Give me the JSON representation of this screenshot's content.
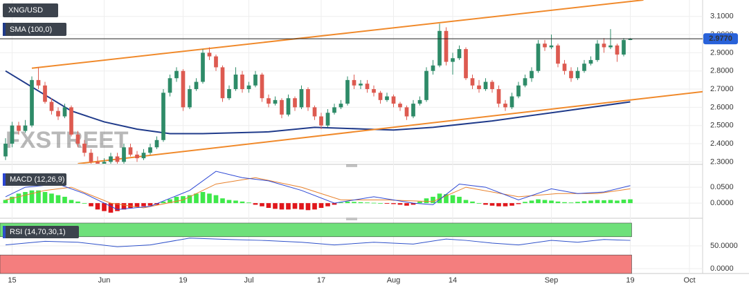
{
  "chart_data": [
    {
      "type": "candlestick",
      "title": "XNG/USD",
      "watermark": "FXSTREET",
      "up_color": "#2e8b68",
      "down_color": "#dd5a50",
      "grid": true,
      "xlim": [
        0,
        106
      ],
      "xticks": [
        {
          "value": 1,
          "label": "15"
        },
        {
          "value": 15,
          "label": "Jun"
        },
        {
          "value": 27,
          "label": "19"
        },
        {
          "value": 37,
          "label": "Jul"
        },
        {
          "value": 48,
          "label": "17"
        },
        {
          "value": 59,
          "label": "Aug"
        },
        {
          "value": 68,
          "label": "14"
        },
        {
          "value": 83,
          "label": "Sep"
        },
        {
          "value": 95,
          "label": "19"
        },
        {
          "value": 104,
          "label": "Oct"
        }
      ],
      "ylim": [
        2.29,
        3.19
      ],
      "yticks": [
        {
          "value": 2.3,
          "label": "2.3000"
        },
        {
          "value": 2.4,
          "label": "2.4000"
        },
        {
          "value": 2.5,
          "label": "2.5000"
        },
        {
          "value": 2.6,
          "label": "2.6000"
        },
        {
          "value": 2.7,
          "label": "2.7000"
        },
        {
          "value": 2.8,
          "label": "2.8000"
        },
        {
          "value": 2.9,
          "label": "2.9000"
        },
        {
          "value": 3.0,
          "label": "3.0000"
        },
        {
          "value": 3.1,
          "label": "3.1000"
        }
      ],
      "open": [
        2.33,
        2.4,
        2.5,
        2.47,
        2.5,
        2.75,
        2.72,
        2.63,
        2.58,
        2.55,
        2.6,
        2.45,
        2.4,
        2.35,
        2.3,
        2.28,
        2.3,
        2.33,
        2.3,
        2.38,
        2.34,
        2.32,
        2.35,
        2.38,
        2.42,
        2.68,
        2.76,
        2.8,
        2.6,
        2.7,
        2.74,
        2.9,
        2.88,
        2.82,
        2.65,
        2.7,
        2.78,
        2.7,
        2.72,
        2.78,
        2.65,
        2.62,
        2.64,
        2.56,
        2.65,
        2.6,
        2.7,
        2.6,
        2.55,
        2.5,
        2.57,
        2.6,
        2.62,
        2.75,
        2.72,
        2.73,
        2.7,
        2.68,
        2.64,
        2.66,
        2.62,
        2.6,
        2.55,
        2.62,
        2.64,
        2.8,
        2.83,
        3.02,
        2.85,
        2.87,
        2.92,
        2.76,
        2.72,
        2.7,
        2.74,
        2.7,
        2.62,
        2.6,
        2.66,
        2.72,
        2.76,
        2.8,
        2.95,
        2.93,
        2.94,
        2.84,
        2.8,
        2.76,
        2.8,
        2.84,
        2.86,
        2.95,
        2.93,
        2.94,
        2.89,
        2.97
      ],
      "high": [
        2.43,
        2.52,
        2.52,
        2.53,
        2.77,
        2.82,
        2.74,
        2.65,
        2.6,
        2.62,
        2.61,
        2.47,
        2.42,
        2.37,
        2.33,
        2.32,
        2.35,
        2.35,
        2.4,
        2.4,
        2.36,
        2.37,
        2.4,
        2.44,
        2.7,
        2.78,
        2.82,
        2.81,
        2.72,
        2.76,
        2.92,
        2.93,
        2.89,
        2.83,
        2.72,
        2.82,
        2.8,
        2.74,
        2.8,
        2.79,
        2.67,
        2.66,
        2.65,
        2.67,
        2.66,
        2.72,
        2.71,
        2.61,
        2.57,
        2.59,
        2.62,
        2.64,
        2.77,
        2.78,
        2.75,
        2.75,
        2.72,
        2.69,
        2.68,
        2.67,
        2.63,
        2.61,
        2.64,
        2.66,
        2.82,
        2.86,
        3.06,
        3.04,
        2.9,
        2.94,
        2.93,
        2.78,
        2.75,
        2.76,
        2.75,
        2.72,
        2.64,
        2.68,
        2.74,
        2.78,
        2.82,
        2.97,
        2.97,
        3.0,
        2.95,
        2.86,
        2.82,
        2.82,
        2.86,
        2.88,
        2.97,
        2.98,
        3.03,
        2.95,
        2.98,
        2.98
      ],
      "low": [
        2.31,
        2.38,
        2.45,
        2.46,
        2.49,
        2.7,
        2.62,
        2.56,
        2.53,
        2.54,
        2.44,
        2.38,
        2.33,
        2.28,
        2.26,
        2.27,
        2.29,
        2.29,
        2.29,
        2.33,
        2.3,
        2.31,
        2.34,
        2.37,
        2.41,
        2.66,
        2.74,
        2.58,
        2.59,
        2.69,
        2.73,
        2.86,
        2.8,
        2.63,
        2.64,
        2.69,
        2.68,
        2.68,
        2.71,
        2.63,
        2.6,
        2.61,
        2.54,
        2.55,
        2.58,
        2.59,
        2.58,
        2.53,
        2.48,
        2.49,
        2.56,
        2.59,
        2.61,
        2.7,
        2.7,
        2.68,
        2.66,
        2.62,
        2.63,
        2.6,
        2.58,
        2.53,
        2.54,
        2.61,
        2.63,
        2.78,
        2.82,
        2.83,
        2.78,
        2.86,
        2.75,
        2.7,
        2.68,
        2.69,
        2.68,
        2.6,
        2.58,
        2.59,
        2.65,
        2.71,
        2.74,
        2.79,
        2.91,
        2.92,
        2.82,
        2.78,
        2.74,
        2.75,
        2.79,
        2.83,
        2.85,
        2.9,
        2.92,
        2.85,
        2.88,
        2.97
      ],
      "close": [
        2.4,
        2.5,
        2.47,
        2.5,
        2.75,
        2.72,
        2.63,
        2.58,
        2.55,
        2.6,
        2.45,
        2.4,
        2.35,
        2.3,
        2.28,
        2.3,
        2.33,
        2.3,
        2.38,
        2.34,
        2.32,
        2.35,
        2.38,
        2.42,
        2.68,
        2.76,
        2.8,
        2.6,
        2.7,
        2.74,
        2.9,
        2.88,
        2.82,
        2.65,
        2.7,
        2.78,
        2.7,
        2.72,
        2.78,
        2.65,
        2.62,
        2.64,
        2.56,
        2.65,
        2.6,
        2.7,
        2.6,
        2.55,
        2.5,
        2.57,
        2.6,
        2.62,
        2.75,
        2.72,
        2.73,
        2.7,
        2.68,
        2.64,
        2.66,
        2.62,
        2.6,
        2.55,
        2.62,
        2.64,
        2.8,
        2.83,
        3.02,
        2.85,
        2.87,
        2.92,
        2.76,
        2.72,
        2.7,
        2.74,
        2.7,
        2.62,
        2.6,
        2.66,
        2.72,
        2.76,
        2.8,
        2.95,
        2.93,
        2.94,
        2.84,
        2.8,
        2.76,
        2.8,
        2.84,
        2.86,
        2.95,
        2.93,
        2.94,
        2.89,
        2.97,
        2.977
      ],
      "sma": {
        "name": "SMA (100,0)",
        "color": "#1f3a8a",
        "x": [
          0,
          5,
          10,
          15,
          20,
          25,
          30,
          40,
          47,
          55,
          59,
          65,
          74,
          84,
          95
        ],
        "values": [
          2.8,
          2.69,
          2.58,
          2.52,
          2.48,
          2.455,
          2.455,
          2.465,
          2.49,
          2.48,
          2.475,
          2.49,
          2.525,
          2.575,
          2.63
        ]
      },
      "trendlines": {
        "color": "#f0892a",
        "lines": [
          {
            "x": [
              4,
              97
            ],
            "values": [
              2.815,
              3.19
            ]
          },
          {
            "x": [
              11,
              106
            ],
            "values": [
              2.29,
              2.686
            ]
          }
        ]
      },
      "last_price": 2.977,
      "last_price_label": "2.9770",
      "last_price_color": "#2962d9"
    },
    {
      "type": "macd",
      "title": "MACD (12,26,9)",
      "up_color": "#3fe84a",
      "down_color": "#e0161b",
      "ylim": [
        -0.041,
        0.111
      ],
      "yticks": [
        {
          "value": 0.0,
          "label": "0.0000"
        },
        {
          "value": 0.05,
          "label": "0.0500"
        }
      ],
      "histogram": [
        0.01,
        0.02,
        0.03,
        0.035,
        0.04,
        0.04,
        0.035,
        0.03,
        0.025,
        0.02,
        0.01,
        0.005,
        0,
        -0.01,
        -0.02,
        -0.025,
        -0.03,
        -0.025,
        -0.02,
        -0.015,
        -0.012,
        -0.01,
        -0.008,
        -0.005,
        0.005,
        0.012,
        0.02,
        0.022,
        0.025,
        0.03,
        0.035,
        0.03,
        0.025,
        0.015,
        0.01,
        0.008,
        0.005,
        0.002,
        -0.005,
        -0.01,
        -0.015,
        -0.018,
        -0.02,
        -0.02,
        -0.018,
        -0.02,
        -0.022,
        -0.02,
        -0.015,
        -0.01,
        -0.005,
        0.002,
        0.005,
        0.004,
        0.003,
        0.002,
        0.001,
        0,
        -0.002,
        -0.003,
        -0.005,
        -0.008,
        -0.005,
        0.005,
        0.015,
        0.02,
        0.03,
        0.028,
        0.025,
        0.02,
        0.01,
        0.005,
        0,
        -0.005,
        -0.008,
        -0.01,
        -0.01,
        -0.008,
        -0.003,
        0.004,
        0.008,
        0.012,
        0.01,
        0.008,
        0.005,
        0.003,
        0.002,
        0.004,
        0.006,
        0.008,
        0.01,
        0.009,
        0.01,
        0.008,
        0.011,
        0.012
      ],
      "macd": {
        "color": "#2b46d4",
        "x": [
          0,
          3,
          8,
          12,
          17,
          22,
          28,
          32,
          36,
          40,
          45,
          50,
          56,
          62,
          65,
          69,
          73,
          78,
          83,
          87,
          91,
          95
        ],
        "values": [
          0.02,
          0.05,
          0.06,
          0.03,
          -0.02,
          -0.01,
          0.04,
          0.1,
          0.08,
          0.07,
          0.04,
          0.0,
          0.02,
          0.0,
          -0.005,
          0.06,
          0.05,
          0.01,
          0.045,
          0.03,
          0.035,
          0.055
        ]
      },
      "signal": {
        "color": "#e8802a",
        "x": [
          0,
          6,
          10,
          16,
          21,
          27,
          32,
          38,
          45,
          51,
          58,
          65,
          70,
          78,
          84,
          90,
          95
        ],
        "values": [
          0.01,
          0.04,
          0.05,
          0.0,
          -0.015,
          0.01,
          0.06,
          0.08,
          0.05,
          0.01,
          0.01,
          0.005,
          0.05,
          0.02,
          0.03,
          0.03,
          0.045
        ]
      }
    },
    {
      "type": "rsi",
      "title": "RSI (14,70,30,1)",
      "color": "#2c4fc9",
      "ylim": [
        -10.6,
        104.5
      ],
      "yticks": [
        {
          "value": 0,
          "label": "0.0000"
        },
        {
          "value": 50,
          "label": "50.0000"
        }
      ],
      "bands": [
        {
          "from": 70,
          "to": 100,
          "color": "#6fe07a"
        },
        {
          "from": -10.6,
          "to": 30,
          "color": "#f47e7e"
        }
      ],
      "x": [
        0,
        6,
        11,
        17,
        22,
        28,
        34,
        39,
        45,
        50,
        56,
        62,
        67,
        70,
        74,
        78,
        83,
        87,
        91,
        95
      ],
      "values": [
        52,
        60,
        58,
        48,
        52,
        67,
        64,
        62,
        58,
        52,
        58,
        54,
        65,
        62,
        56,
        52,
        62,
        58,
        64,
        62
      ]
    }
  ]
}
